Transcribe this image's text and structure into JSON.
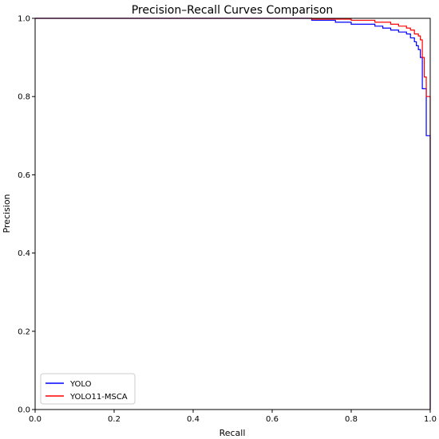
{
  "chart_data": {
    "type": "line",
    "title": "Precision–Recall Curves Comparison",
    "xlabel": "Recall",
    "ylabel": "Precision",
    "xlim": [
      0.0,
      1.0
    ],
    "ylim": [
      0.0,
      1.0
    ],
    "x_ticks": [
      "0.0",
      "0.2",
      "0.4",
      "0.6",
      "0.8",
      "1.0"
    ],
    "y_ticks": [
      "0.0",
      "0.2",
      "0.4",
      "0.6",
      "0.8",
      "1.0"
    ],
    "grid": false,
    "legend_position": "lower-left",
    "series": [
      {
        "name": "YOLO",
        "color": "#0000ff",
        "x": [
          0.0,
          0.7,
          0.7,
          0.76,
          0.76,
          0.8,
          0.8,
          0.86,
          0.86,
          0.88,
          0.88,
          0.9,
          0.9,
          0.92,
          0.92,
          0.94,
          0.94,
          0.95,
          0.95,
          0.96,
          0.96,
          0.965,
          0.965,
          0.97,
          0.97,
          0.975,
          0.975,
          0.98,
          0.98,
          0.99,
          0.99,
          1.0,
          1.0
        ],
        "y": [
          1.0,
          1.0,
          0.995,
          0.995,
          0.99,
          0.99,
          0.985,
          0.985,
          0.98,
          0.98,
          0.975,
          0.975,
          0.97,
          0.97,
          0.965,
          0.965,
          0.96,
          0.96,
          0.95,
          0.95,
          0.94,
          0.94,
          0.93,
          0.93,
          0.92,
          0.92,
          0.9,
          0.9,
          0.82,
          0.82,
          0.7,
          0.7,
          0.0
        ]
      },
      {
        "name": "YOLO11-MSCA",
        "color": "#ff0000",
        "x": [
          0.0,
          0.7,
          0.7,
          0.8,
          0.8,
          0.86,
          0.86,
          0.9,
          0.9,
          0.92,
          0.92,
          0.94,
          0.94,
          0.95,
          0.95,
          0.96,
          0.96,
          0.97,
          0.97,
          0.975,
          0.975,
          0.98,
          0.98,
          0.985,
          0.985,
          0.99,
          0.99,
          1.0,
          1.0
        ],
        "y": [
          1.0,
          1.0,
          0.998,
          0.998,
          0.995,
          0.995,
          0.99,
          0.99,
          0.985,
          0.985,
          0.98,
          0.98,
          0.975,
          0.975,
          0.97,
          0.97,
          0.96,
          0.96,
          0.955,
          0.955,
          0.945,
          0.945,
          0.9,
          0.9,
          0.85,
          0.85,
          0.8,
          0.8,
          0.0
        ]
      }
    ]
  }
}
